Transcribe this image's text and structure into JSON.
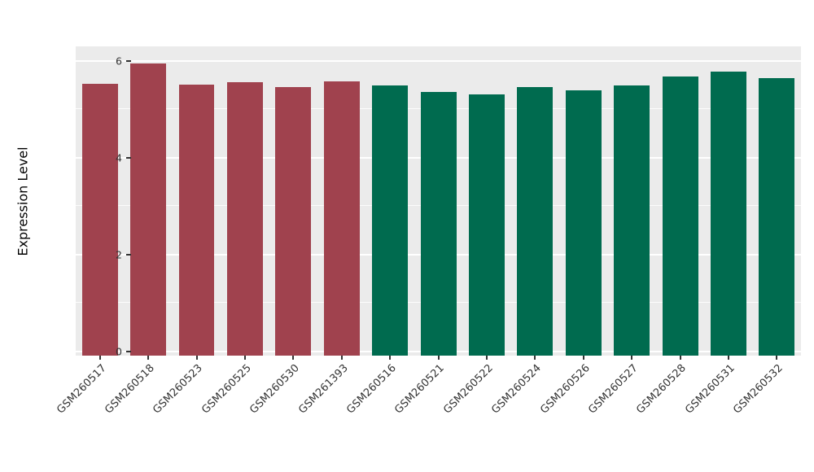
{
  "chart_data": {
    "type": "bar",
    "title": "",
    "xlabel": "",
    "ylabel": "Expression Level",
    "ylim": [
      0,
      6.3
    ],
    "yticks": [
      0,
      2,
      4,
      6
    ],
    "yticks_minor": [
      1,
      3,
      5
    ],
    "grid": true,
    "legend": false,
    "categories": [
      "GSM260517",
      "GSM260518",
      "GSM260523",
      "GSM260525",
      "GSM260530",
      "GSM261393",
      "GSM260516",
      "GSM260521",
      "GSM260522",
      "GSM260524",
      "GSM260526",
      "GSM260527",
      "GSM260528",
      "GSM260531",
      "GSM260532"
    ],
    "values": [
      5.53,
      5.96,
      5.52,
      5.57,
      5.47,
      5.58,
      5.5,
      5.38,
      5.32,
      5.47,
      5.4,
      5.5,
      5.68,
      5.78,
      5.65
    ],
    "bar_colors": [
      "#A0424E",
      "#A0424E",
      "#A0424E",
      "#A0424E",
      "#A0424E",
      "#A0424E",
      "#006B4F",
      "#006B4F",
      "#006B4F",
      "#006B4F",
      "#006B4F",
      "#006B4F",
      "#006B4F",
      "#006B4F",
      "#006B4F"
    ],
    "color_groups": {
      "group1": "#A0424E",
      "group2": "#006B4F"
    },
    "panel_background": "#EBEBEB",
    "gridline_color": "#FFFFFF"
  }
}
